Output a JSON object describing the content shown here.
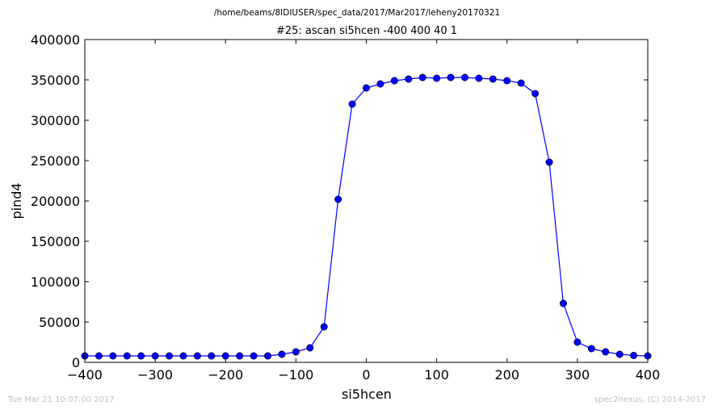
{
  "supertitle": "/home/beams/8IDIUSER/spec_data/2017/Mar2017/leheny20170321",
  "footer": {
    "left": "Tue Mar 21 10:07:00 2017",
    "right": "spec2nexus, (C) 2014-2017"
  },
  "colors": {
    "series": "#0000ff",
    "axes": "#000000",
    "footer_text": "#c0c0c0",
    "background": "#ffffff"
  },
  "chart_data": {
    "type": "line",
    "title": "#25: ascan  si5hcen -400 400  40 1",
    "xlabel": "si5hcen",
    "ylabel": "pind4",
    "xlim": [
      -400,
      400
    ],
    "ylim": [
      0,
      400000
    ],
    "xticks": [
      -400,
      -300,
      -200,
      -100,
      0,
      100,
      200,
      300,
      400
    ],
    "xtick_labels": [
      "−400",
      "−300",
      "−200",
      "−100",
      "0",
      "100",
      "200",
      "300",
      "400"
    ],
    "yticks": [
      0,
      50000,
      100000,
      150000,
      200000,
      250000,
      300000,
      350000,
      400000
    ],
    "ytick_labels": [
      "0",
      "50000",
      "100000",
      "150000",
      "200000",
      "250000",
      "300000",
      "350000",
      "400000"
    ],
    "grid": false,
    "marker": "circle",
    "series": [
      {
        "x": [
          -400,
          -380,
          -360,
          -340,
          -320,
          -300,
          -280,
          -260,
          -240,
          -220,
          -200,
          -180,
          -160,
          -140,
          -120,
          -100,
          -80,
          -60,
          -40,
          -20,
          0,
          20,
          40,
          60,
          80,
          100,
          120,
          140,
          160,
          180,
          200,
          220,
          240,
          260,
          280,
          300,
          320,
          340,
          360,
          380,
          400
        ],
        "y": [
          8000,
          8000,
          8000,
          8000,
          8000,
          8000,
          8000,
          8000,
          8000,
          8000,
          8000,
          8000,
          8000,
          8000,
          10000,
          13000,
          18000,
          44000,
          202000,
          320000,
          340000,
          345000,
          349000,
          351000,
          353000,
          352000,
          353000,
          353000,
          352000,
          351000,
          349000,
          346000,
          333000,
          248000,
          73000,
          25000,
          17000,
          13000,
          10000,
          8500,
          8000
        ]
      }
    ]
  }
}
